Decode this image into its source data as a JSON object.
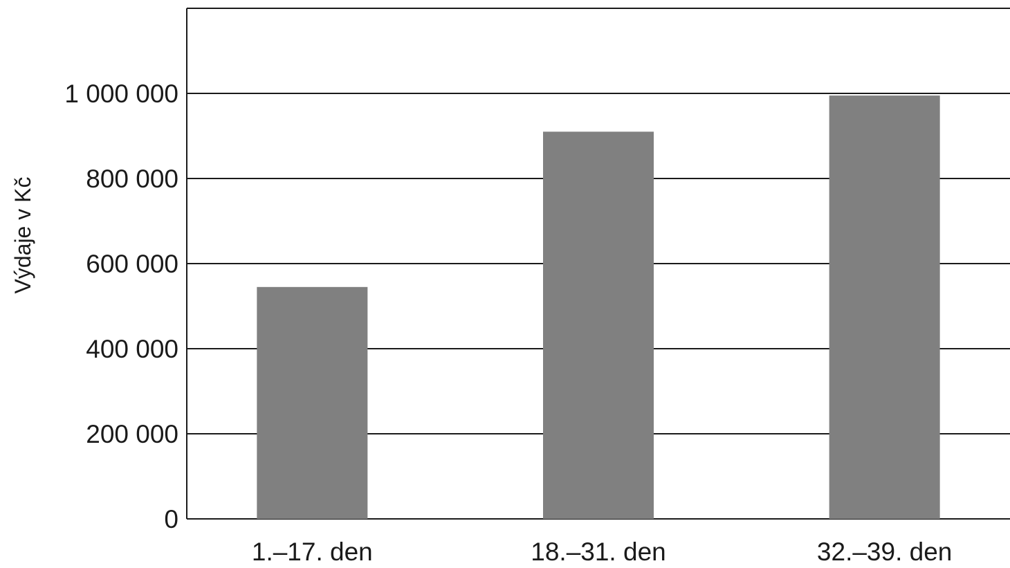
{
  "chart_data": {
    "type": "bar",
    "title": "",
    "xlabel": "",
    "ylabel": "Výdaje v Kč",
    "categories": [
      "1.–17. den",
      "18.–31. den",
      "32.–39. den"
    ],
    "values": [
      545000,
      910000,
      995000
    ],
    "ylim": [
      0,
      1200000
    ],
    "yticks": [
      0,
      200000,
      400000,
      600000,
      800000,
      1000000
    ],
    "ytick_labels": [
      "0",
      "200 000",
      "400 000",
      "600 000",
      "800 000",
      "1 000 000"
    ],
    "grid": true,
    "legend": "none",
    "bar_color": "#808080",
    "grid_color": "#1a1a1a"
  }
}
